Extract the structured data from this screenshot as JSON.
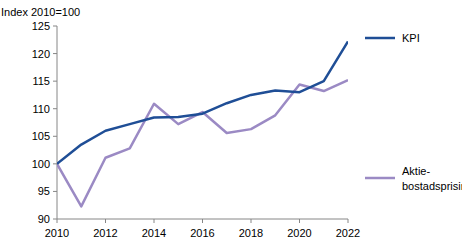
{
  "chart_data": {
    "type": "line",
    "y_label": "Index 2010=100",
    "x": [
      2010,
      2011,
      2012,
      2013,
      2014,
      2015,
      2016,
      2017,
      2018,
      2019,
      2020,
      2021,
      2022
    ],
    "series": [
      {
        "name": "KPI",
        "color": "#1f4e96",
        "values": [
          100,
          103.5,
          106,
          107.2,
          108.4,
          108.5,
          109.1,
          111,
          112.5,
          113.3,
          113,
          115,
          122.2
        ]
      },
      {
        "name": "Aktie-bostadsprisindex",
        "color": "#9b8ac4",
        "values": [
          100,
          92.3,
          101.1,
          102.8,
          110.9,
          107.2,
          109.4,
          105.6,
          106.3,
          108.8,
          114.4,
          113.2,
          115.2
        ]
      }
    ],
    "xlim": [
      2010,
      2022
    ],
    "xticks": [
      2010,
      2012,
      2014,
      2016,
      2018,
      2020,
      2022
    ],
    "ylim": [
      90,
      125
    ],
    "yticks": [
      90,
      95,
      100,
      105,
      110,
      115,
      120,
      125
    ],
    "grid": false,
    "legend": "right"
  }
}
